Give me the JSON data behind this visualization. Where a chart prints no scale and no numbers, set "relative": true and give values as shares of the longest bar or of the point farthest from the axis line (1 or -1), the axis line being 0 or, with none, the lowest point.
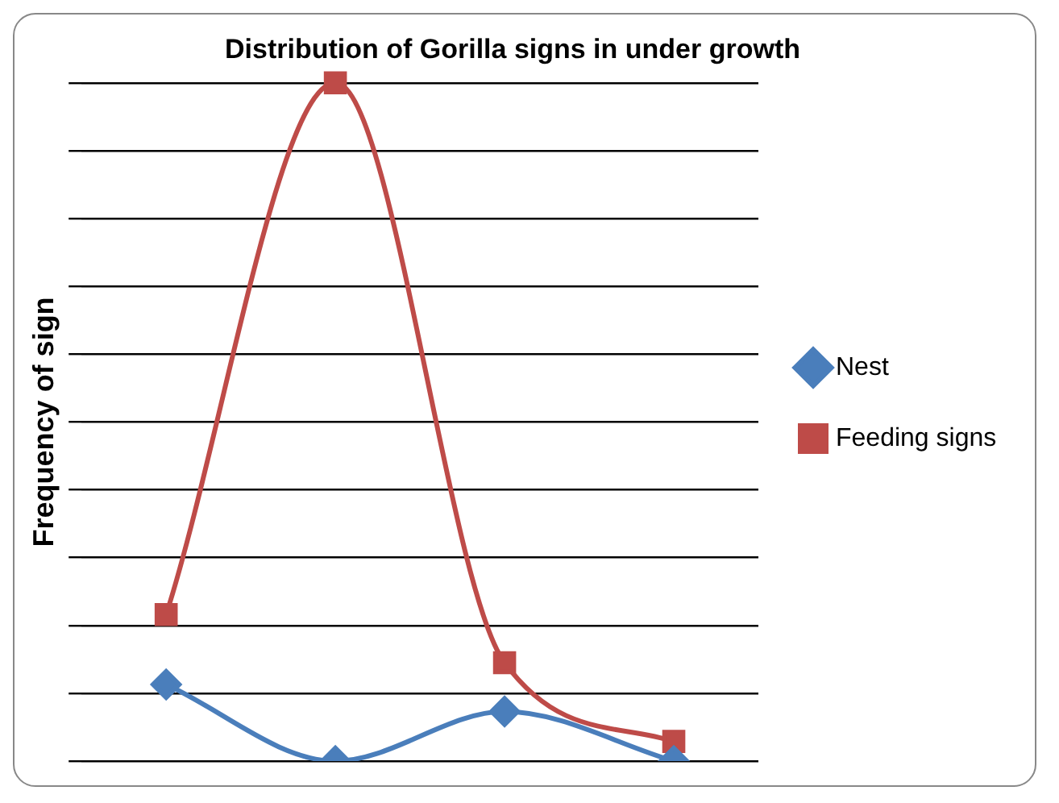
{
  "chart_data": {
    "type": "line",
    "title": "Distribution of Gorilla signs in under growth",
    "ylabel": "Frequency of sign",
    "relative": true,
    "categories": [
      null,
      null,
      null,
      null
    ],
    "series": [
      {
        "name": "Nest",
        "color": "#4a7ebb",
        "values": [
          0.113,
          0,
          0.073,
          0
        ],
        "marker": "diamond"
      },
      {
        "name": "Feeding signs",
        "color": "#be4b48",
        "values": [
          0.216,
          1,
          0.145,
          0.029
        ],
        "marker": "square"
      }
    ],
    "grid": "y",
    "legend": "right"
  }
}
